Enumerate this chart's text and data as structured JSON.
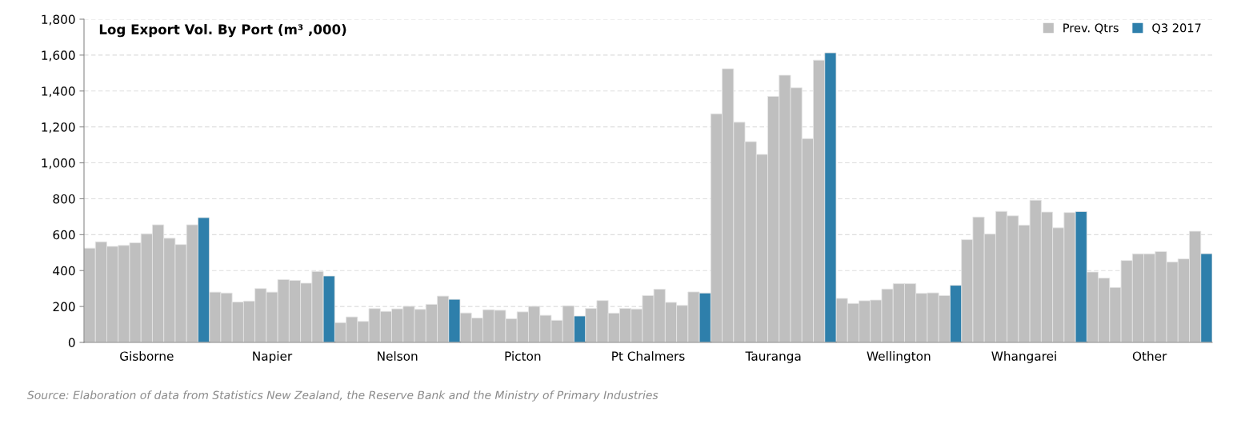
{
  "chart_data": {
    "type": "bar",
    "title": "Log Export Vol. By Port (m³ ,000)",
    "categories": [
      "Gisborne",
      "Napier",
      "Nelson",
      "Picton",
      "Pt Chalmers",
      "Tauranga",
      "Wellington",
      "Whangarei",
      "Other"
    ],
    "series": [
      {
        "name": "Prev. Qtrs",
        "color": "#bfbfbf",
        "values": [
          525,
          280,
          110,
          164,
          189,
          1273,
          245,
          572,
          392
        ]
      },
      {
        "color": "#bfbfbf",
        "values": [
          560,
          275,
          142,
          136,
          233,
          1524,
          217,
          698,
          358
        ]
      },
      {
        "color": "#bfbfbf",
        "values": [
          535,
          225,
          117,
          182,
          163,
          1226,
          232,
          604,
          306
        ]
      },
      {
        "color": "#bfbfbf",
        "values": [
          540,
          230,
          188,
          179,
          189,
          1118,
          236,
          730,
          456
        ]
      },
      {
        "color": "#bfbfbf",
        "values": [
          555,
          300,
          173,
          132,
          186,
          1047,
          297,
          705,
          493
        ]
      },
      {
        "color": "#bfbfbf",
        "values": [
          605,
          280,
          187,
          170,
          261,
          1370,
          327,
          653,
          493
        ]
      },
      {
        "color": "#bfbfbf",
        "values": [
          655,
          350,
          201,
          201,
          296,
          1488,
          327,
          792,
          506
        ]
      },
      {
        "color": "#bfbfbf",
        "values": [
          580,
          345,
          184,
          151,
          223,
          1418,
          273,
          726,
          448
        ]
      },
      {
        "color": "#bfbfbf",
        "values": [
          545,
          330,
          212,
          123,
          206,
          1135,
          276,
          638,
          465
        ]
      },
      {
        "color": "#bfbfbf",
        "values": [
          655,
          395,
          258,
          204,
          281,
          1572,
          261,
          723,
          619
        ]
      },
      {
        "name": "Q3 2017",
        "color": "#2e7fab",
        "values": [
          695,
          370,
          240,
          147,
          275,
          1613,
          318,
          729,
          494
        ]
      }
    ],
    "ylim": [
      0,
      1800
    ],
    "yticks": [
      0,
      200,
      400,
      600,
      800,
      {
        "value": 1000,
        "label": "1,000"
      },
      {
        "value": 1200,
        "label": "1,200"
      },
      {
        "value": 1400,
        "label": "1,400"
      },
      {
        "value": 1600,
        "label": "1,600"
      },
      {
        "value": 1800,
        "label": "1,800"
      }
    ],
    "grid": "y",
    "legend": "top right",
    "annotations": [
      "Source: Elaboration of data from Statistics New Zealand, the Reserve Bank and the Ministry of Primary Industries"
    ]
  }
}
